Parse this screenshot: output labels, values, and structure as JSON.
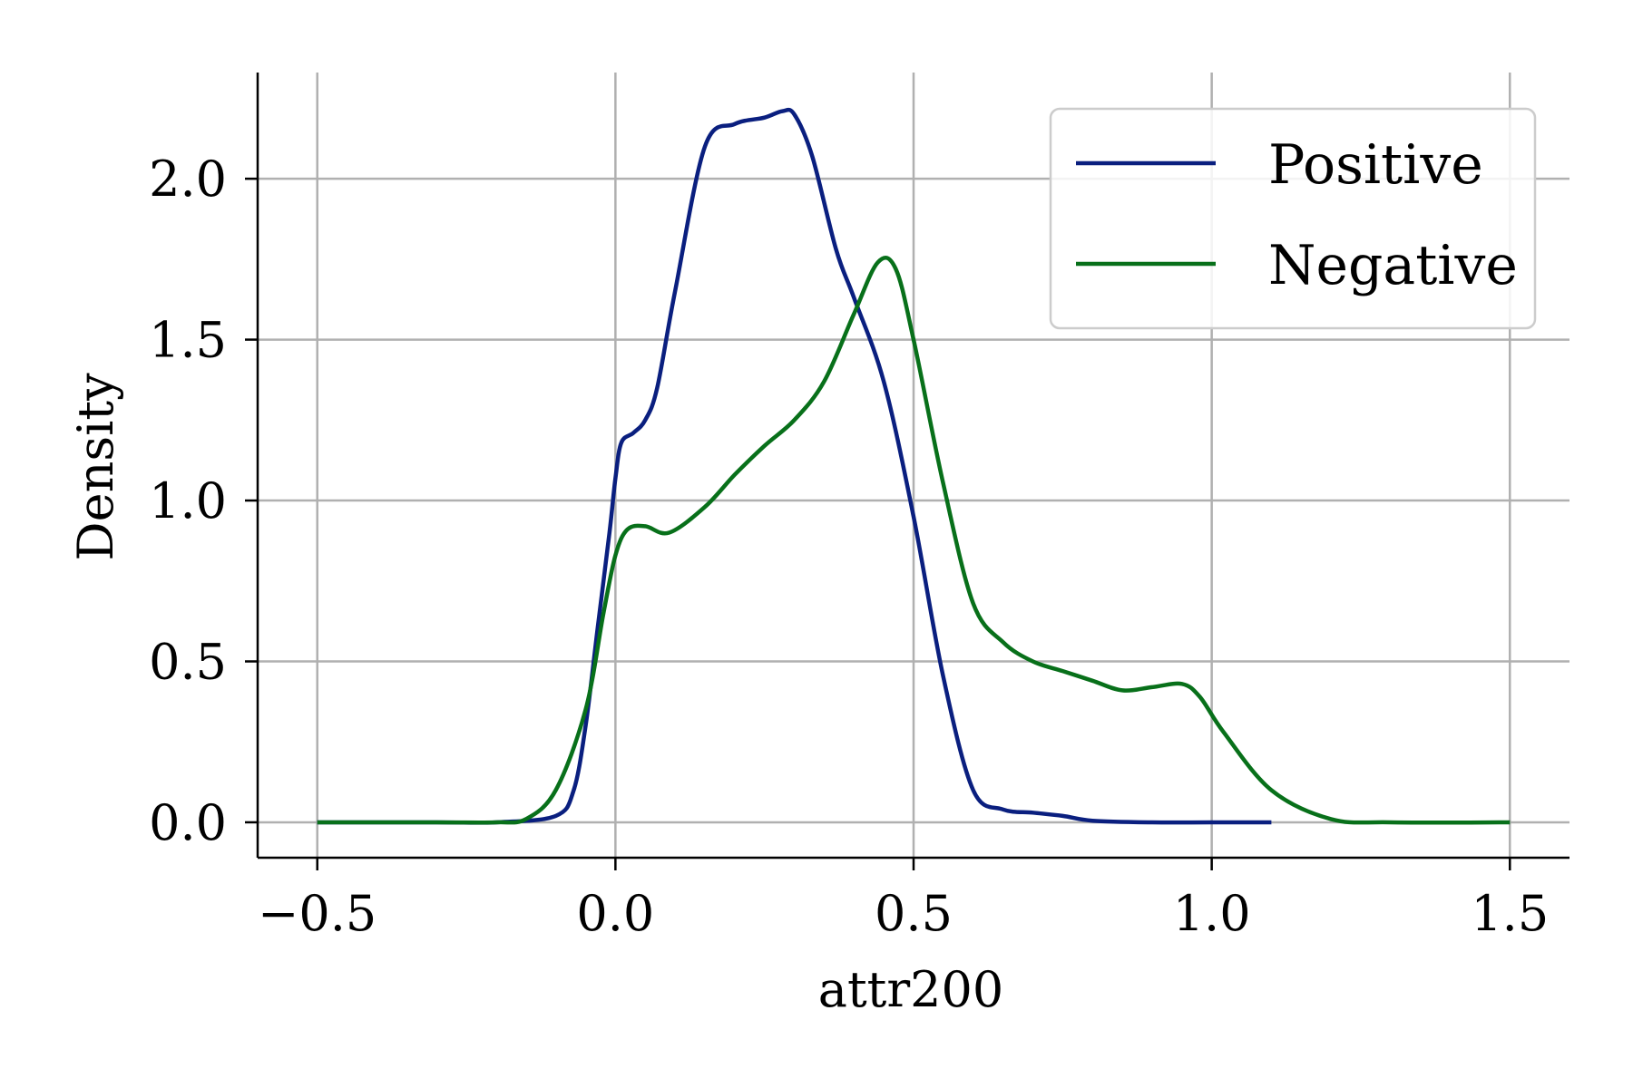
{
  "chart_data": {
    "type": "line",
    "xlabel": "attr200",
    "ylabel": "Density",
    "xlim": [
      -0.6,
      1.6
    ],
    "ylim": [
      -0.11,
      2.33
    ],
    "x_ticks": [
      -0.5,
      0.0,
      0.5,
      1.0,
      1.5
    ],
    "x_tick_labels": [
      "−0.5",
      "0.0",
      "0.5",
      "1.0",
      "1.5"
    ],
    "y_ticks": [
      0.0,
      0.5,
      1.0,
      1.5,
      2.0
    ],
    "y_tick_labels": [
      "0.0",
      "0.5",
      "1.0",
      "1.5",
      "2.0"
    ],
    "grid": true,
    "legend_position": "top-right",
    "series": [
      {
        "name": "Positive",
        "color": "#0a1f7f",
        "x": [
          -0.5,
          -0.3,
          -0.2,
          -0.1,
          -0.07,
          -0.05,
          -0.03,
          -0.01,
          0.0,
          0.01,
          0.03,
          0.05,
          0.07,
          0.1,
          0.15,
          0.2,
          0.25,
          0.28,
          0.3,
          0.33,
          0.37,
          0.4,
          0.45,
          0.5,
          0.55,
          0.6,
          0.65,
          0.7,
          0.75,
          0.8,
          0.9,
          1.0,
          1.1
        ],
        "values": [
          0.0,
          0.0,
          0.0,
          0.02,
          0.1,
          0.3,
          0.6,
          0.9,
          1.07,
          1.18,
          1.21,
          1.25,
          1.35,
          1.65,
          2.1,
          2.17,
          2.19,
          2.21,
          2.2,
          2.07,
          1.78,
          1.63,
          1.37,
          0.95,
          0.45,
          0.1,
          0.04,
          0.03,
          0.02,
          0.005,
          0.0,
          0.0,
          0.0
        ]
      },
      {
        "name": "Negative",
        "color": "#08701a",
        "x": [
          -0.5,
          -0.3,
          -0.2,
          -0.15,
          -0.1,
          -0.05,
          -0.02,
          0.0,
          0.02,
          0.05,
          0.09,
          0.15,
          0.2,
          0.25,
          0.3,
          0.35,
          0.4,
          0.44,
          0.47,
          0.5,
          0.55,
          0.6,
          0.65,
          0.7,
          0.75,
          0.8,
          0.85,
          0.9,
          0.95,
          0.98,
          1.02,
          1.1,
          1.2,
          1.3,
          1.5
        ],
        "values": [
          0.0,
          0.0,
          0.0,
          0.01,
          0.1,
          0.35,
          0.65,
          0.83,
          0.91,
          0.92,
          0.9,
          0.98,
          1.08,
          1.17,
          1.25,
          1.37,
          1.58,
          1.74,
          1.72,
          1.5,
          1.05,
          0.68,
          0.56,
          0.5,
          0.47,
          0.44,
          0.41,
          0.42,
          0.43,
          0.39,
          0.28,
          0.1,
          0.01,
          0.0,
          0.0
        ]
      }
    ]
  }
}
